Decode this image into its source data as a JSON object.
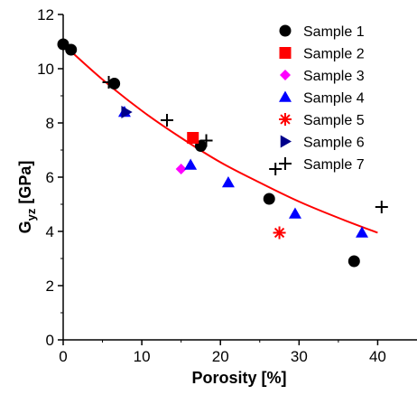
{
  "chart_data": {
    "type": "scatter",
    "xlabel": "Porosity [%]",
    "ylabel_main": "G",
    "ylabel_sub": "yz",
    "ylabel_unit": "[GPa]",
    "xlim": [
      0,
      45
    ],
    "ylim": [
      0,
      12
    ],
    "x_ticks": [
      0,
      10,
      20,
      30,
      40
    ],
    "y_ticks": [
      0,
      2,
      4,
      6,
      8,
      10,
      12
    ],
    "grid": false,
    "legend_position": "top-right",
    "series": [
      {
        "name": "Sample 1",
        "marker": "circle",
        "color": "#000000",
        "points": [
          [
            0,
            10.9
          ],
          [
            1,
            10.7
          ],
          [
            6.5,
            9.45
          ],
          [
            17.5,
            7.15
          ],
          [
            26.2,
            5.2
          ],
          [
            37,
            2.9
          ]
        ]
      },
      {
        "name": "Sample 2",
        "marker": "square",
        "color": "#ff0000",
        "points": [
          [
            16.5,
            7.45
          ]
        ]
      },
      {
        "name": "Sample 3",
        "marker": "diamond",
        "color": "#ff00ff",
        "points": [
          [
            15,
            6.3
          ]
        ]
      },
      {
        "name": "Sample 4",
        "marker": "triangle",
        "color": "#0000ff",
        "points": [
          [
            7.8,
            8.4
          ],
          [
            16.2,
            6.45
          ],
          [
            21,
            5.8
          ],
          [
            29.5,
            4.65
          ],
          [
            38,
            3.95
          ]
        ]
      },
      {
        "name": "Sample 5",
        "marker": "asterisk",
        "color": "#ff0000",
        "points": [
          [
            27.5,
            3.95
          ]
        ]
      },
      {
        "name": "Sample 6",
        "marker": "triangle-right",
        "color": "#00008b",
        "points": [
          [
            8,
            8.4
          ]
        ]
      },
      {
        "name": "Sample 7",
        "marker": "plus",
        "color": "#000000",
        "points": [
          [
            5.8,
            9.5
          ],
          [
            13.2,
            8.1
          ],
          [
            18.2,
            7.35
          ],
          [
            27,
            6.3
          ],
          [
            40.5,
            4.9
          ]
        ]
      }
    ],
    "fit_curve": {
      "color": "#ff0000",
      "points": [
        [
          0,
          10.9
        ],
        [
          5,
          9.6
        ],
        [
          10,
          8.45
        ],
        [
          15,
          7.45
        ],
        [
          20,
          6.55
        ],
        [
          25,
          5.8
        ],
        [
          30,
          5.1
        ],
        [
          35,
          4.5
        ],
        [
          40,
          3.95
        ]
      ]
    }
  }
}
